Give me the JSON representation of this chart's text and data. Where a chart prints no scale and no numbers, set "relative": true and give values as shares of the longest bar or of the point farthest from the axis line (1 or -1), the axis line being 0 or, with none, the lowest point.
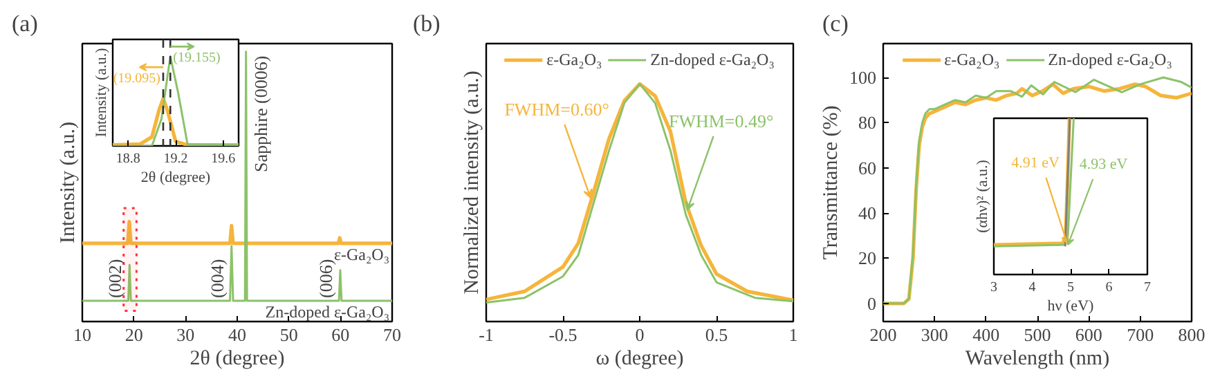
{
  "chart_data": [
    {
      "type": "line",
      "title": "(a)",
      "xlabel": "2θ (degree)",
      "ylabel": "Intensity (a.u.)",
      "relative": true,
      "xlim": [
        10,
        70
      ],
      "xticks": [
        10,
        20,
        30,
        40,
        50,
        60,
        70
      ],
      "legend": false,
      "grid": false,
      "series": [
        {
          "name": "ε-Ga₂O₃",
          "color": "#f5b53b",
          "x": [
            10,
            18.8,
            19.1,
            19.4,
            38.6,
            38.9,
            39.2,
            59.6,
            59.85,
            60.1,
            70
          ],
          "values": [
            0.29,
            0.29,
            0.37,
            0.29,
            0.29,
            0.355,
            0.29,
            0.29,
            0.31,
            0.29,
            0.29
          ]
        },
        {
          "name": "Zn-doped ε-Ga₂O₃",
          "color": "#8cc269",
          "x": [
            10,
            18.9,
            19.15,
            19.4,
            38.6,
            38.9,
            39.2,
            41.5,
            41.7,
            41.9,
            59.7,
            59.95,
            60.2,
            70
          ],
          "values": [
            0.077,
            0.077,
            0.21,
            0.077,
            0.077,
            0.28,
            0.077,
            0.077,
            1,
            0.077,
            0.077,
            0.19,
            0.077,
            0.077
          ]
        }
      ],
      "annotations": [
        {
          "text": "(002)",
          "x": 19.15,
          "y": 0.077
        },
        {
          "text": "(004)",
          "x": 38.9,
          "y": 0.077
        },
        {
          "text": "(006)",
          "x": 59.95,
          "y": 0.077
        },
        {
          "text": "Sapphire (0006)",
          "x": 41.7,
          "y": 1
        }
      ],
      "bands": [
        {
          "axis": "x",
          "from": 18,
          "to": 20.5,
          "color": "#ff3333"
        }
      ]
    },
    {
      "type": "line",
      "xlabel": "2θ (degree)",
      "ylabel": "Intensity (a.u.)",
      "relative": true,
      "xlim": [
        18.67,
        19.73
      ],
      "xticks": [
        18.8,
        19.2,
        19.6
      ],
      "legend": false,
      "grid": false,
      "series": [
        {
          "color": "#f5b53b",
          "x": [
            18.67,
            18.9,
            19.0,
            19.06,
            19.095,
            19.13,
            19.2,
            19.3,
            19.73
          ],
          "values": [
            0.01,
            0.02,
            0.1,
            0.4,
            0.53,
            0.4,
            0.05,
            0.01,
            0.01
          ]
        },
        {
          "color": "#8cc269",
          "x": [
            18.67,
            19.0,
            19.08,
            19.155,
            19.22,
            19.3,
            19.73
          ],
          "values": [
            0,
            0,
            0.3,
            1,
            0.6,
            0.02,
            0.01
          ]
        }
      ],
      "ref_lines": [
        {
          "axis": "x",
          "value": 19.095,
          "color": "#333333",
          "line_style": "dashed"
        },
        {
          "axis": "x",
          "value": 19.155,
          "color": "#333333",
          "line_style": "dashed"
        }
      ],
      "annotations": [
        {
          "text": "(19.095)",
          "x": 19.095,
          "y": 0.88
        },
        {
          "text": "(19.155)",
          "x": 19.155,
          "y": 1.11
        }
      ]
    },
    {
      "type": "line",
      "title": "(b)",
      "xlabel": "ω (degree)",
      "ylabel": "Normalized intensity (a.u.)",
      "relative": true,
      "xlim": [
        -1,
        1
      ],
      "xticks": [
        -1,
        -0.5,
        0,
        0.5,
        1
      ],
      "legend": "top",
      "grid": false,
      "series": [
        {
          "name": "ε-Ga₂O₃",
          "color": "#f5b53b",
          "x": [
            -1,
            -0.75,
            -0.5,
            -0.4,
            -0.3,
            -0.2,
            -0.1,
            0,
            0.1,
            0.2,
            0.3,
            0.4,
            0.5,
            0.7,
            1
          ],
          "values": [
            0.093,
            0.127,
            0.23,
            0.33,
            0.545,
            0.77,
            0.93,
            1,
            0.95,
            0.8,
            0.5,
            0.32,
            0.2,
            0.127,
            0.09
          ]
        },
        {
          "name": "Zn-doped ε-Ga₂O₃",
          "color": "#8cc269",
          "x": [
            -1,
            -0.75,
            -0.5,
            -0.4,
            -0.3,
            -0.2,
            -0.1,
            0,
            0.1,
            0.2,
            0.3,
            0.4,
            0.5,
            0.75,
            1
          ],
          "values": [
            0.08,
            0.1,
            0.19,
            0.28,
            0.5,
            0.72,
            0.92,
            1,
            0.92,
            0.72,
            0.45,
            0.28,
            0.165,
            0.1,
            0.085
          ]
        }
      ],
      "annotations": [
        {
          "text": "FWHM=0.60°",
          "x": -0.32,
          "y": 0.52
        },
        {
          "text": "FWHM=0.49°",
          "x": 0.31,
          "y": 0.47
        }
      ]
    },
    {
      "type": "line",
      "title": "(c)",
      "xlabel": "Wavelength (nm)",
      "ylabel": "Transmittance (%)",
      "xlim": [
        200,
        800
      ],
      "xticks": [
        200,
        300,
        400,
        500,
        600,
        700,
        800
      ],
      "ylim": [
        -8,
        115
      ],
      "yticks": [
        0,
        20,
        40,
        60,
        80,
        100
      ],
      "legend": "top",
      "grid": false,
      "series": [
        {
          "name": "ε-Ga₂O₃",
          "color": "#f5b53b",
          "x": [
            200,
            240,
            250,
            258,
            264,
            270,
            276,
            282,
            290,
            300,
            320,
            340,
            360,
            380,
            400,
            420,
            440,
            460,
            470,
            490,
            510,
            530,
            550,
            570,
            600,
            630,
            660,
            690,
            710,
            740,
            770,
            800
          ],
          "values": [
            0,
            0,
            2,
            20,
            50,
            70,
            78,
            82,
            84,
            85,
            87,
            89,
            88,
            90,
            91,
            90,
            92,
            93,
            95,
            92,
            94,
            97,
            93,
            95,
            96,
            94,
            95,
            97,
            96,
            92,
            91,
            93
          ]
        },
        {
          "name": "Zn-doped ε-Ga₂O₃",
          "color": "#8cc269",
          "x": [
            200,
            240,
            250,
            258,
            264,
            270,
            276,
            282,
            290,
            300,
            320,
            340,
            360,
            380,
            400,
            420,
            448,
            470,
            488,
            511,
            533,
            574,
            610,
            664,
            700,
            745,
            780,
            800
          ],
          "values": [
            0,
            0,
            2,
            22,
            52,
            72,
            80,
            84,
            86,
            86,
            88,
            90,
            89,
            92,
            91,
            94,
            94,
            91.5,
            96.5,
            92.5,
            98,
            93.5,
            99,
            93.5,
            97,
            100,
            98,
            95.5
          ]
        }
      ]
    },
    {
      "type": "line",
      "xlabel": "hν (eV)",
      "ylabel": "(αhν)² (a.u.)",
      "relative": true,
      "xlim": [
        3,
        7
      ],
      "xticks": [
        3,
        4,
        5,
        6,
        7
      ],
      "legend": false,
      "grid": false,
      "series": [
        {
          "color": "#f5b53b",
          "x": [
            3,
            4.8,
            4.87,
            4.92,
            4.97
          ],
          "values": [
            0.19,
            0.2,
            0.25,
            0.6,
            1.0
          ]
        },
        {
          "color": "#8cc269",
          "x": [
            3,
            4.85,
            4.93,
            5.0,
            5.08
          ],
          "values": [
            0.18,
            0.19,
            0.25,
            0.6,
            1.0
          ]
        },
        {
          "color": "#808080",
          "x": [
            4.86,
            4.98
          ],
          "values": [
            0.18,
            1.0
          ]
        }
      ],
      "annotations": [
        {
          "text": "4.91 eV",
          "x": 4.91,
          "y": 0.2
        },
        {
          "text": "4.93 eV",
          "x": 4.93,
          "y": 0.19
        }
      ]
    }
  ]
}
